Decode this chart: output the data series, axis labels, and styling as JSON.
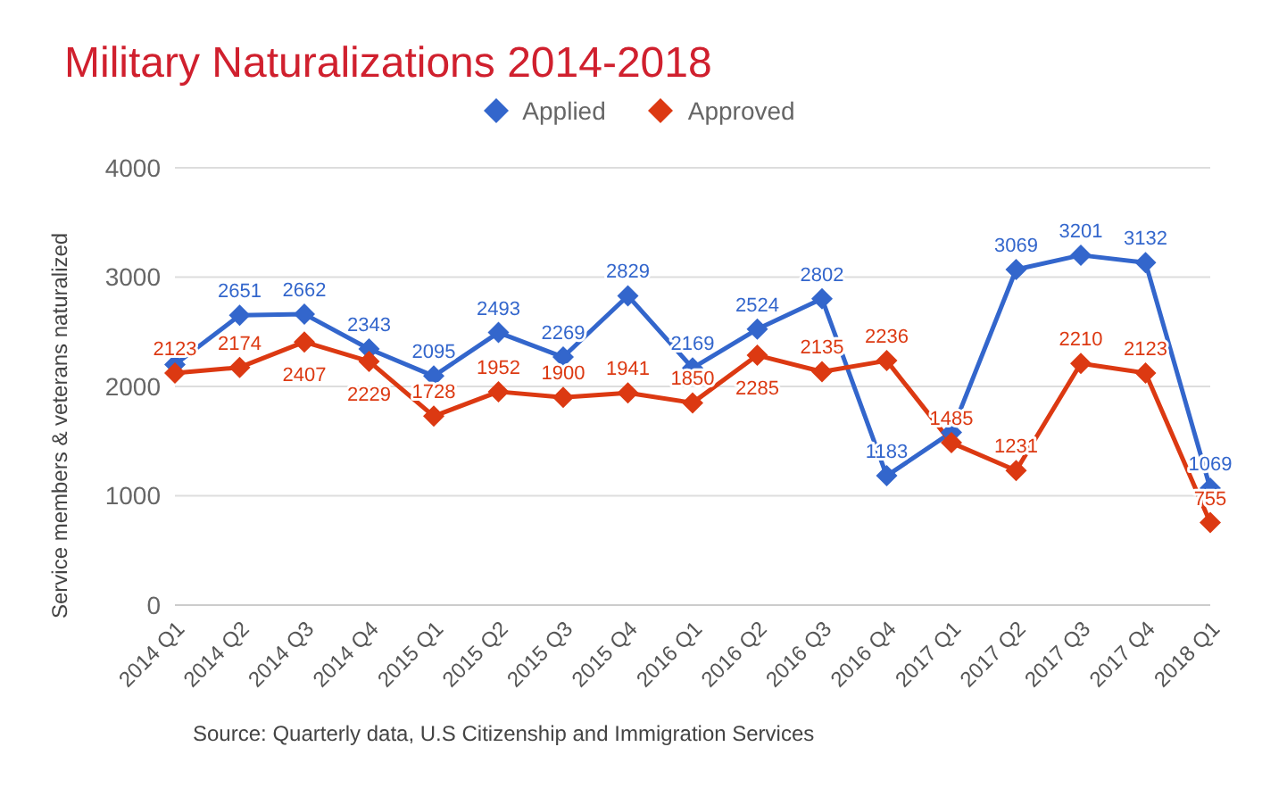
{
  "chart_data": {
    "type": "line",
    "title": "Military Naturalizations 2014-2018",
    "ylabel": "Service members & veterans naturalized",
    "categories": [
      "2014 Q1",
      "2014 Q2",
      "2014 Q3",
      "2014 Q4",
      "2015 Q1",
      "2015 Q2",
      "2015 Q3",
      "2015 Q4",
      "2016 Q1",
      "2016 Q2",
      "2016 Q3",
      "2016 Q4",
      "2017 Q1",
      "2017 Q2",
      "2017 Q3",
      "2017 Q4",
      "2018 Q1"
    ],
    "series": [
      {
        "name": "Applied",
        "color": "#3366cc",
        "values": [
          2200,
          2651,
          2662,
          2343,
          2095,
          2493,
          2269,
          2829,
          2169,
          2524,
          2802,
          1183,
          1580,
          3069,
          3201,
          3132,
          1069
        ],
        "value_labels": [
          null,
          "2651",
          "2662",
          "2343",
          "2095",
          "2493",
          "2269",
          "2829",
          "2169",
          "2524",
          "2802",
          "1183",
          null,
          "3069",
          "3201",
          "3132",
          "1069"
        ]
      },
      {
        "name": "Approved",
        "color": "#dc3912",
        "values": [
          2123,
          2174,
          2407,
          2229,
          1728,
          1952,
          1900,
          1941,
          1850,
          2285,
          2135,
          2236,
          1485,
          1231,
          2210,
          2123,
          755
        ],
        "value_labels": [
          "2123",
          "2174",
          "2407",
          "2229",
          "1728",
          "1952",
          "1900",
          "1941",
          "1850",
          "2285",
          "2135",
          "2236",
          "1485",
          "1231",
          "2210",
          "2123",
          "755"
        ]
      }
    ],
    "ylim": [
      0,
      4000
    ],
    "yticks": [
      0,
      1000,
      2000,
      3000,
      4000
    ],
    "grid": "y",
    "legend": "top",
    "marker": "diamond",
    "line_style": "solid",
    "annotations": [
      "Source: Quarterly data, U.S Citizenship and Immigration Services"
    ]
  }
}
